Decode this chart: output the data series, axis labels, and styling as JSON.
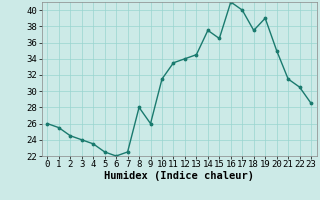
{
  "x": [
    0,
    1,
    2,
    3,
    4,
    5,
    6,
    7,
    8,
    9,
    10,
    11,
    12,
    13,
    14,
    15,
    16,
    17,
    18,
    19,
    20,
    21,
    22,
    23
  ],
  "y": [
    26,
    25.5,
    24.5,
    24,
    23.5,
    22.5,
    22,
    22.5,
    28,
    26,
    31.5,
    33.5,
    34,
    34.5,
    37.5,
    36.5,
    41,
    40,
    37.5,
    39,
    35,
    31.5,
    30.5,
    28.5
  ],
  "line_color": "#1a7a6e",
  "marker_color": "#1a7a6e",
  "bg_color": "#cceae7",
  "grid_color": "#99d5d0",
  "xlabel": "Humidex (Indice chaleur)",
  "ylim": [
    22,
    41
  ],
  "xlim": [
    -0.5,
    23.5
  ],
  "yticks": [
    22,
    24,
    26,
    28,
    30,
    32,
    34,
    36,
    38,
    40
  ],
  "xticks": [
    0,
    1,
    2,
    3,
    4,
    5,
    6,
    7,
    8,
    9,
    10,
    11,
    12,
    13,
    14,
    15,
    16,
    17,
    18,
    19,
    20,
    21,
    22,
    23
  ],
  "xlabel_fontsize": 7.5,
  "tick_fontsize": 6.5
}
